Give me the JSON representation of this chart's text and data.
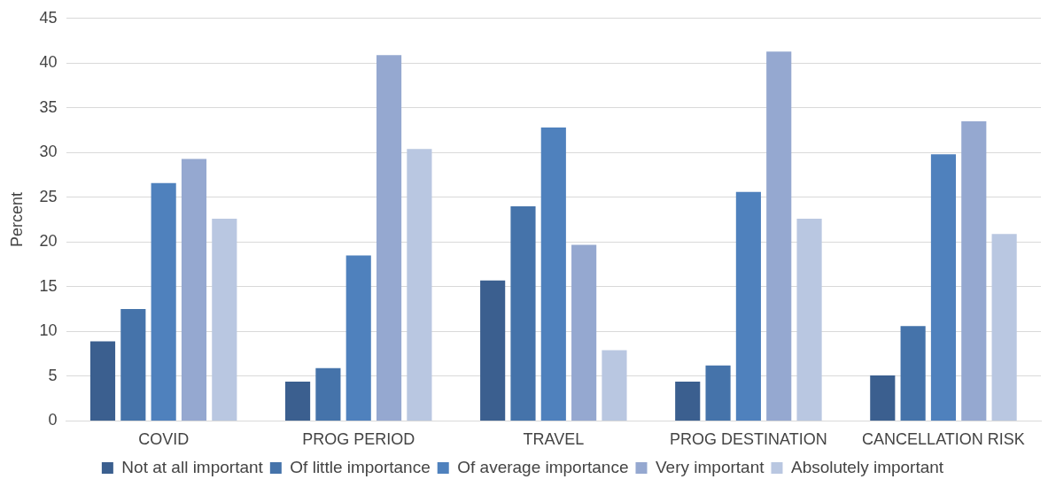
{
  "chart_data": {
    "type": "bar",
    "ylabel": "Percent",
    "categories": [
      "COVID",
      "PROG PERIOD",
      "TRAVEL",
      "PROG DESTINATION",
      "CANCELLATION RISK"
    ],
    "series": [
      {
        "name": "Not at all important",
        "color": "#3b5f8f",
        "values": [
          8.9,
          4.4,
          15.7,
          4.4,
          5.1
        ]
      },
      {
        "name": "Of little importance",
        "color": "#4573aa",
        "values": [
          12.5,
          5.9,
          24.0,
          6.2,
          10.6
        ]
      },
      {
        "name": "Of average importance",
        "color": "#4f81bd",
        "values": [
          26.6,
          18.5,
          32.8,
          25.6,
          29.8
        ]
      },
      {
        "name": "Very important",
        "color": "#95a8d0",
        "values": [
          29.3,
          40.9,
          19.7,
          41.3,
          33.5
        ]
      },
      {
        "name": "Absolutely important",
        "color": "#b9c7e1",
        "values": [
          22.6,
          30.4,
          7.9,
          22.6,
          20.9
        ]
      }
    ],
    "ylim": [
      0,
      45
    ],
    "yticks": [
      0,
      5,
      10,
      15,
      20,
      25,
      30,
      35,
      40,
      45
    ],
    "grid": "y",
    "legend": "bottom"
  }
}
